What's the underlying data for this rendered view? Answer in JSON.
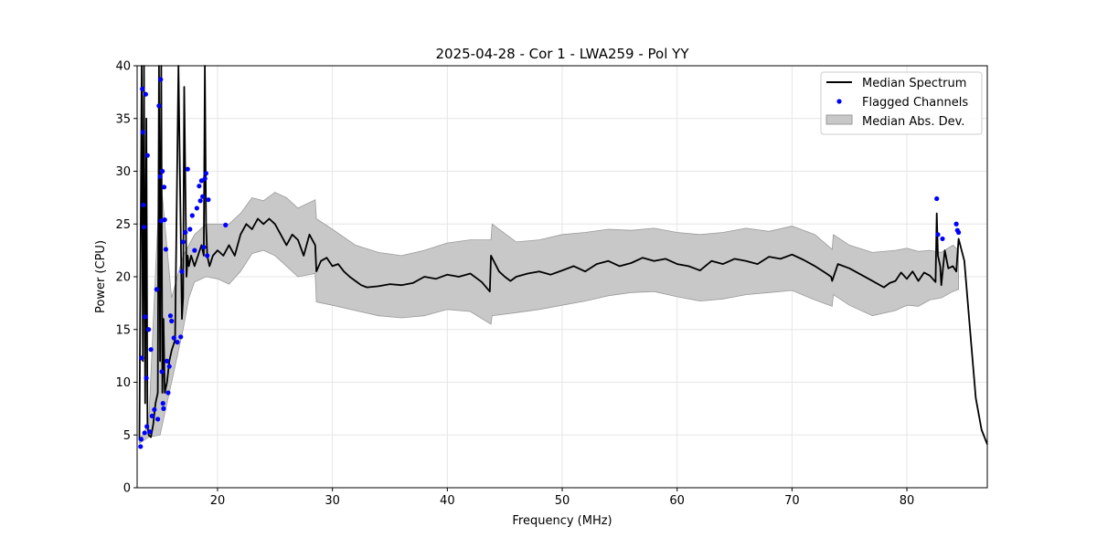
{
  "colors": {
    "line": "#000000",
    "flag": "#0000ff",
    "band_fill": "#c8c8c8",
    "band_edge": "#9a9a9a",
    "grid": "#e6e6e6"
  },
  "chart_data": {
    "type": "line",
    "title": "2025-04-28 - Cor 1 - LWA259 - Pol YY",
    "xlabel": "Frequency (MHz)",
    "ylabel": "Power (CPU)",
    "xlim": [
      13.0,
      87.0
    ],
    "ylim": [
      0,
      40
    ],
    "xticks": [
      20,
      30,
      40,
      50,
      60,
      70,
      80
    ],
    "yticks": [
      0,
      5,
      10,
      15,
      20,
      25,
      30,
      35,
      40
    ],
    "grid": true,
    "legend_position": "top-right",
    "legend": [
      {
        "label": "Median Spectrum",
        "marker": "line"
      },
      {
        "label": "Flagged Channels",
        "marker": "dot"
      },
      {
        "label": "Median Abs. Dev.",
        "marker": "patch"
      }
    ],
    "series": [
      {
        "name": "Median Spectrum",
        "x": [
          13.2,
          13.4,
          13.5,
          13.6,
          13.7,
          13.8,
          13.9,
          14.0,
          14.2,
          14.4,
          14.6,
          14.8,
          14.9,
          15.0,
          15.1,
          15.2,
          15.3,
          15.4,
          15.6,
          15.8,
          16.0,
          16.3,
          16.6,
          16.9,
          17.0,
          17.1,
          17.3,
          17.4,
          17.5,
          17.7,
          18.0,
          18.3,
          18.6,
          18.8,
          18.9,
          19.0,
          19.1,
          19.3,
          19.6,
          20.0,
          20.5,
          21.0,
          21.5,
          22.0,
          22.5,
          23.0,
          23.5,
          24.0,
          24.5,
          25.0,
          25.5,
          26.0,
          26.5,
          27.0,
          27.5,
          28.0,
          28.5,
          28.6,
          29.0,
          29.5,
          30.0,
          30.5,
          31.0,
          31.5,
          32.0,
          32.5,
          33.0,
          34.0,
          35.0,
          36.0,
          37.0,
          38.0,
          39.0,
          40.0,
          41.0,
          42.0,
          43.0,
          43.7,
          43.8,
          44.5,
          45.0,
          45.5,
          46.0,
          47.0,
          48.0,
          49.0,
          50.0,
          51.0,
          52.0,
          53.0,
          54.0,
          55.0,
          56.0,
          57.0,
          58.0,
          59.0,
          60.0,
          61.0,
          62.0,
          63.0,
          64.0,
          65.0,
          66.0,
          67.0,
          68.0,
          69.0,
          70.0,
          71.0,
          72.0,
          73.0,
          73.4,
          73.5,
          74.0,
          75.0,
          76.0,
          77.0,
          78.0,
          78.5,
          79.0,
          79.5,
          80.0,
          80.5,
          81.0,
          81.5,
          82.0,
          82.5,
          82.6,
          82.7,
          82.9,
          83.0,
          83.3,
          83.6,
          84.0,
          84.3,
          84.5,
          85.0,
          85.5,
          86.0,
          86.5,
          87.0
        ],
        "values": [
          4.5,
          40,
          12,
          40,
          8,
          35,
          6,
          5,
          4.8,
          6,
          8,
          9,
          40,
          12,
          40,
          9,
          16,
          9,
          10,
          12,
          13,
          14,
          40,
          16,
          18,
          38,
          20,
          22,
          21,
          22,
          21,
          22,
          23,
          22,
          40,
          25,
          22,
          21,
          22,
          22.5,
          22,
          23,
          22,
          24,
          25,
          24.5,
          25.5,
          25,
          25.5,
          25,
          24,
          23,
          24,
          23.5,
          22,
          24,
          23,
          20.5,
          21.5,
          21.8,
          21,
          21.2,
          20.5,
          20,
          19.6,
          19.2,
          19,
          19.1,
          19.3,
          19.2,
          19.4,
          20,
          19.8,
          20.2,
          20,
          20.3,
          19.5,
          18.6,
          22,
          20.5,
          20,
          19.6,
          20,
          20.3,
          20.5,
          20.2,
          20.6,
          21,
          20.5,
          21.2,
          21.5,
          21,
          21.3,
          21.8,
          21.5,
          21.7,
          21.2,
          21,
          20.6,
          21.5,
          21.2,
          21.7,
          21.5,
          21.2,
          21.9,
          21.7,
          22.1,
          21.6,
          21,
          20.3,
          20,
          19.6,
          21.2,
          20.8,
          20.2,
          19.6,
          19,
          19.4,
          19.6,
          20.4,
          19.8,
          20.5,
          19.6,
          20.4,
          20.1,
          19.5,
          26,
          22,
          21,
          19.2,
          22.5,
          20.8,
          21,
          20.5,
          23.6,
          21.5,
          15,
          8.5,
          5.5,
          4.1
        ]
      },
      {
        "name": "Median Abs. Dev.",
        "x": [
          13.2,
          14.0,
          15.0,
          16.0,
          17.0,
          17.5,
          18.0,
          19.0,
          20.0,
          21.0,
          22.0,
          23.0,
          24.0,
          25.0,
          26.0,
          27.0,
          28.5,
          28.6,
          30.0,
          32.0,
          34.0,
          36.0,
          38.0,
          40.0,
          42.0,
          43.8,
          43.9,
          46.0,
          48.0,
          50.0,
          52.0,
          54.0,
          56.0,
          58.0,
          60.0,
          62.0,
          64.0,
          66.0,
          68.0,
          70.0,
          72.0,
          73.5,
          73.6,
          75.0,
          77.0,
          79.0,
          80.0,
          81.0,
          82.0,
          83.0,
          84.0,
          84.5
        ],
        "upper": [
          4.5,
          6,
          30,
          18,
          22,
          23,
          24,
          25,
          25,
          25,
          26,
          27.5,
          27.2,
          28,
          27.5,
          26.5,
          27.3,
          25.5,
          24.5,
          23,
          22.3,
          22,
          22.5,
          23.2,
          23.5,
          23.5,
          25,
          23.3,
          23.5,
          24,
          24.2,
          24.5,
          24.4,
          24.6,
          24.2,
          24,
          24.2,
          24.6,
          24.3,
          24.8,
          24,
          22.6,
          24,
          23,
          22.3,
          22.5,
          22.7,
          22.4,
          22.5,
          22.3,
          23,
          22.5
        ],
        "lower": [
          4.2,
          4.8,
          5,
          10,
          15,
          18,
          19.5,
          20,
          19.8,
          19.3,
          20.5,
          22.2,
          22.5,
          22,
          21,
          20,
          20.3,
          17.6,
          17.3,
          16.8,
          16.3,
          16.1,
          16.3,
          16.9,
          16.7,
          15.5,
          16.3,
          16.6,
          16.9,
          17.3,
          17.7,
          18.2,
          18.5,
          18.6,
          18.1,
          17.7,
          17.9,
          18.3,
          18.5,
          18.7,
          17.8,
          17.2,
          18.3,
          17.3,
          16.3,
          16.8,
          17.3,
          17.2,
          17.8,
          18.0,
          18.6,
          18.8
        ]
      },
      {
        "name": "Flagged Channels",
        "x": [
          13.3,
          13.35,
          13.4,
          13.45,
          13.5,
          13.55,
          13.6,
          13.65,
          13.7,
          13.75,
          13.8,
          13.85,
          13.9,
          14.0,
          14.1,
          14.2,
          14.3,
          14.5,
          14.7,
          14.8,
          14.9,
          15.0,
          15.05,
          15.1,
          15.15,
          15.2,
          15.25,
          15.3,
          15.35,
          15.4,
          15.5,
          15.6,
          15.7,
          15.8,
          15.9,
          16.0,
          16.2,
          16.5,
          16.8,
          16.9,
          17.0,
          17.2,
          17.4,
          17.6,
          17.8,
          18.0,
          18.2,
          18.4,
          18.5,
          18.6,
          18.7,
          18.8,
          18.9,
          19.0,
          19.1,
          19.2,
          20.7,
          82.6,
          82.7,
          83.1,
          84.3,
          84.4,
          84.5
        ],
        "values": [
          3.9,
          4.6,
          12.3,
          37.8,
          33.7,
          26.8,
          24.7,
          5.2,
          16.2,
          37.3,
          10.4,
          5.8,
          31.5,
          15.0,
          5.3,
          13.1,
          6.8,
          7.4,
          18.8,
          6.5,
          36.2,
          29.5,
          38.7,
          25.3,
          11.0,
          30.0,
          8.0,
          7.5,
          28.5,
          25.4,
          22.6,
          12.0,
          9.0,
          11.5,
          16.3,
          15.8,
          14.2,
          13.8,
          14.3,
          20.5,
          23.3,
          24.2,
          30.2,
          24.5,
          25.8,
          22.5,
          26.5,
          28.6,
          27.2,
          29.1,
          27.6,
          22.8,
          29.3,
          29.8,
          22.0,
          27.3,
          24.9,
          27.4,
          24.0,
          23.6,
          25.0,
          24.4,
          24.2
        ]
      }
    ]
  }
}
